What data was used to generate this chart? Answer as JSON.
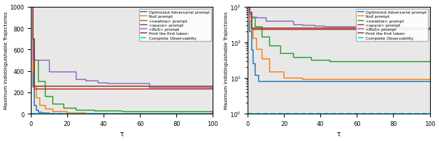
{
  "ylabel": "Maximum Indistinguishable Trajectories",
  "xlabel": "τ",
  "legend_labels": [
    "Optimized Adversarial prompt",
    "Null prompt",
    "<newline> prompt",
    "<space> prompt",
    "<BoS> prompt",
    "Print the first token:",
    "Complete Observability"
  ],
  "colors": {
    "optimized": "#1f77b4",
    "null": "#ff7f0e",
    "newline": "#2ca02c",
    "space": "#d62728",
    "bos": "#9467bd",
    "print": "#7f3f1f",
    "complete": "#00e5ff"
  },
  "xlim": [
    0,
    100
  ],
  "ylim_linear": [
    0,
    1000
  ],
  "ylim_log": [
    1,
    1000
  ],
  "background": "#e8e8e8"
}
